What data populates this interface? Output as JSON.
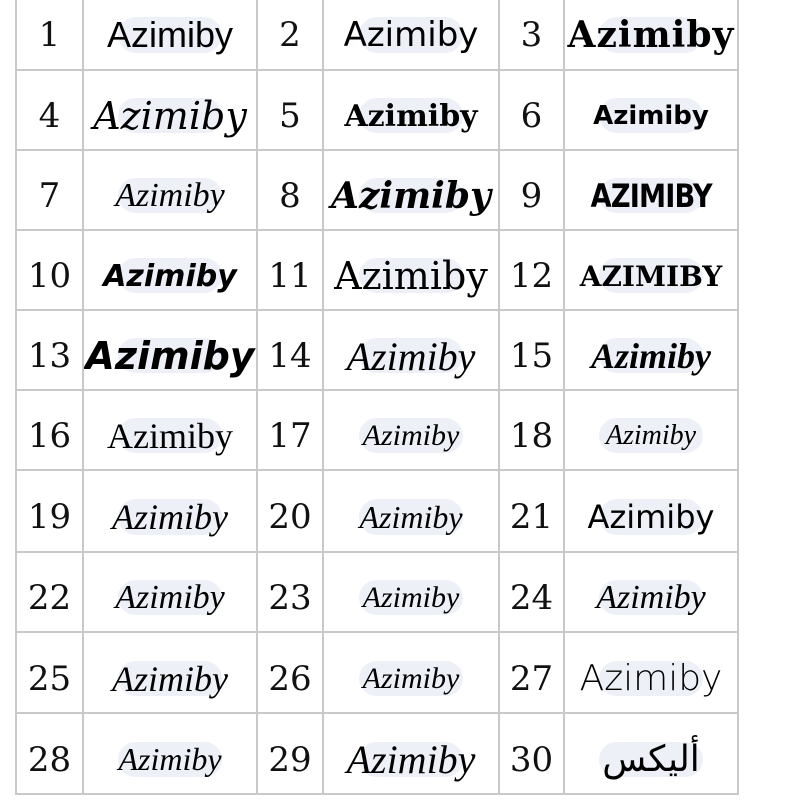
{
  "samples": [
    {
      "number": "1",
      "text": "Azimiby"
    },
    {
      "number": "2",
      "text": "Azimiby"
    },
    {
      "number": "3",
      "text": "Azimiby"
    },
    {
      "number": "4",
      "text": "Azimiby"
    },
    {
      "number": "5",
      "text": "Azimiby"
    },
    {
      "number": "6",
      "text": "Azimiby"
    },
    {
      "number": "7",
      "text": "Azimiby"
    },
    {
      "number": "8",
      "text": "Azimiby"
    },
    {
      "number": "9",
      "text": "AZIMIBY"
    },
    {
      "number": "10",
      "text": "Azimiby"
    },
    {
      "number": "11",
      "text": "Azimiby"
    },
    {
      "number": "12",
      "text": "AZIMIBY"
    },
    {
      "number": "13",
      "text": "Azimiby"
    },
    {
      "number": "14",
      "text": "Azimiby"
    },
    {
      "number": "15",
      "text": "Azimiby"
    },
    {
      "number": "16",
      "text": "Azimiby"
    },
    {
      "number": "17",
      "text": "Azimiby"
    },
    {
      "number": "18",
      "text": "Azimiby"
    },
    {
      "number": "19",
      "text": "Azimiby"
    },
    {
      "number": "20",
      "text": "Azimiby"
    },
    {
      "number": "21",
      "text": "Azimiby"
    },
    {
      "number": "22",
      "text": "Azimiby"
    },
    {
      "number": "23",
      "text": "Azimiby"
    },
    {
      "number": "24",
      "text": "Azimiby"
    },
    {
      "number": "25",
      "text": "Azimiby"
    },
    {
      "number": "26",
      "text": "Azimiby"
    },
    {
      "number": "27",
      "text": "Azimiby"
    },
    {
      "number": "28",
      "text": "Azimiby"
    },
    {
      "number": "29",
      "text": "Azimiby"
    },
    {
      "number": "30",
      "text": "أليكس"
    }
  ]
}
